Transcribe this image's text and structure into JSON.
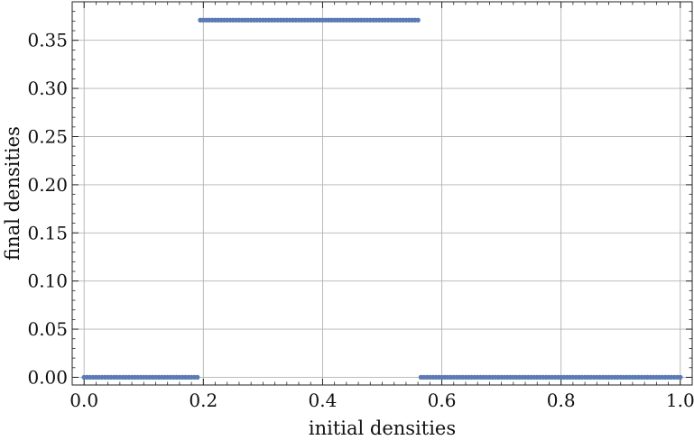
{
  "chart_data": {
    "type": "scatter",
    "xlabel": "initial densities",
    "ylabel": "final densities",
    "xlim": [
      -0.02,
      1.02
    ],
    "ylim": [
      -0.008,
      0.39
    ],
    "xticks": [
      0.0,
      0.2,
      0.4,
      0.6,
      0.8,
      1.0
    ],
    "xtick_labels": [
      "0.0",
      "0.2",
      "0.4",
      "0.6",
      "0.8",
      "1.0"
    ],
    "yticks": [
      0.0,
      0.05,
      0.1,
      0.15,
      0.2,
      0.25,
      0.3,
      0.35
    ],
    "ytick_labels": [
      "0.00",
      "0.05",
      "0.10",
      "0.15",
      "0.20",
      "0.25",
      "0.30",
      "0.35"
    ],
    "grid": true,
    "point_color": "#5b7bb3",
    "series": [
      {
        "x_start": 0.0,
        "x_end": 1.0,
        "n_points": 201,
        "segments": [
          {
            "x_from": 0.0,
            "x_to": 0.19,
            "y": 0.0
          },
          {
            "x_from": 0.195,
            "x_to": 0.56,
            "y": 0.371
          },
          {
            "x_from": 0.565,
            "x_to": 1.0,
            "y": 0.0
          }
        ]
      }
    ]
  }
}
